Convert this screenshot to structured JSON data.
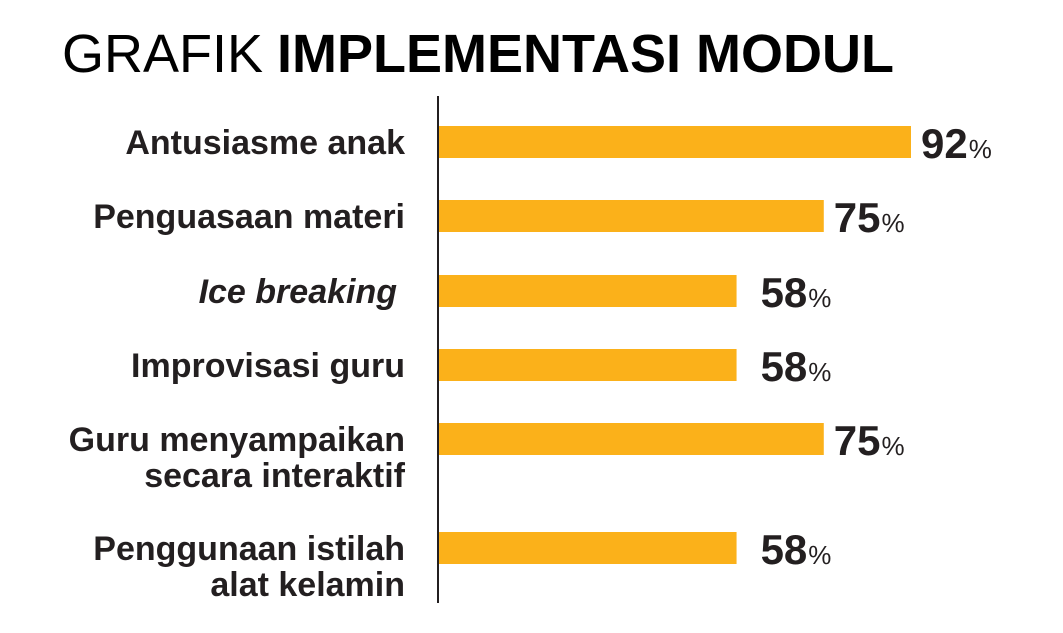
{
  "chart_data": {
    "type": "bar",
    "orientation": "horizontal",
    "title_prefix": "GRAFIK",
    "title_main": "IMPLEMENTASI MODUL",
    "categories": [
      [
        "Antusiasme anak"
      ],
      [
        "Penguasaan materi"
      ],
      [
        "Ice breaking"
      ],
      [
        "Improvisasi guru"
      ],
      [
        "Guru menyampaikan",
        "secara interaktif"
      ],
      [
        "Penggunaan istilah",
        "alat kelamin"
      ]
    ],
    "italic_categories": [
      2
    ],
    "values": [
      92,
      75,
      58,
      58,
      75,
      58
    ],
    "value_suffix": "%",
    "xlim": [
      0,
      92
    ],
    "bar_color": "#fbb11a",
    "axis_color": "#231f20",
    "text_color": "#231f20",
    "grid": false,
    "legend": "none"
  }
}
